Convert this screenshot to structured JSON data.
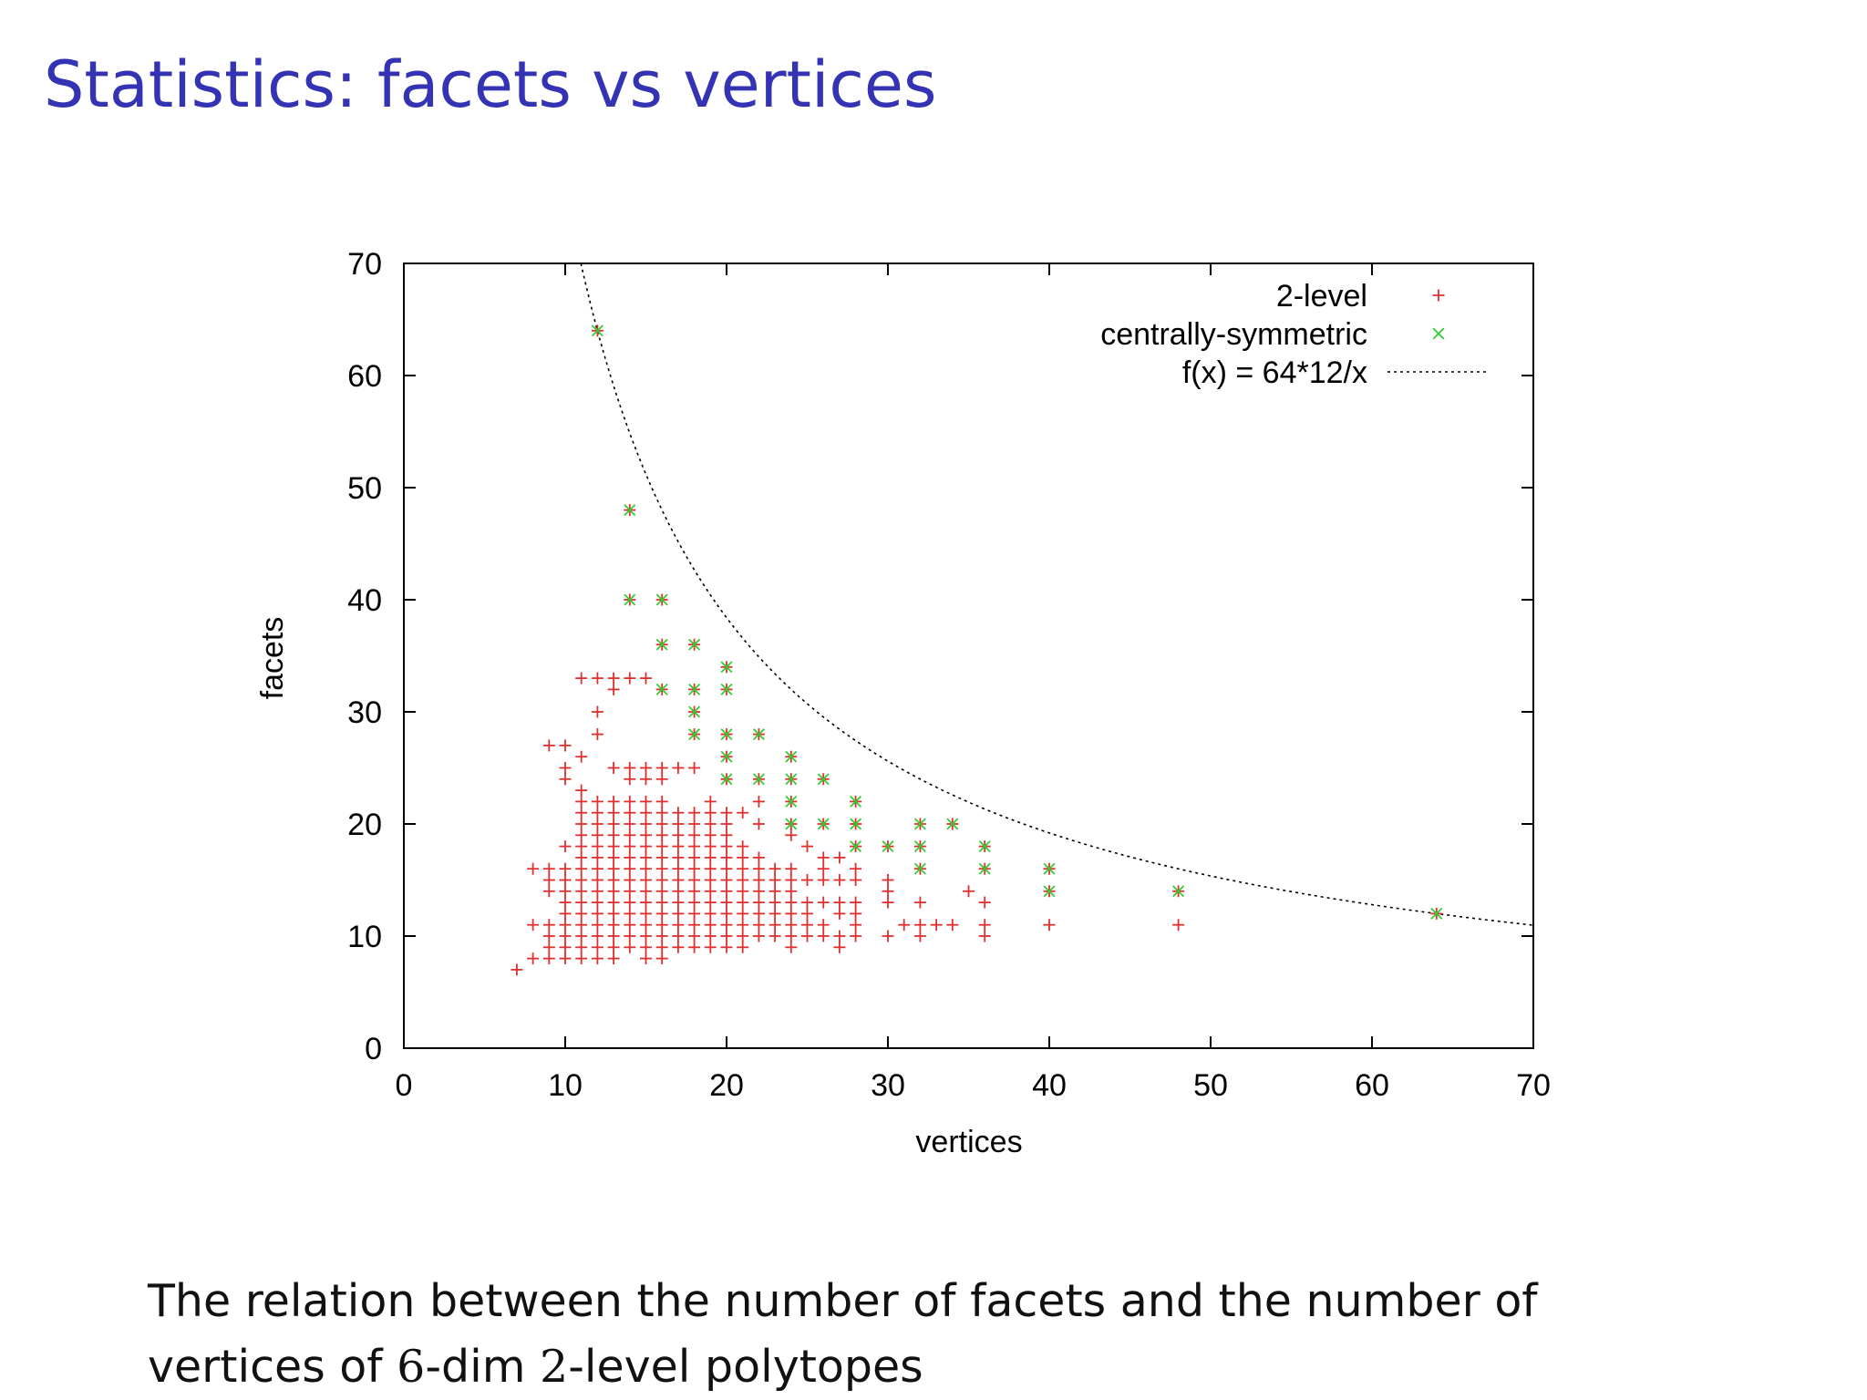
{
  "slide": {
    "title": "Statistics: facets vs vertices",
    "caption_line1": "The relation between the number of facets and the number of",
    "caption_line2_a": "vertices of ",
    "caption_line2_b": "6",
    "caption_line2_c": "-dim ",
    "caption_line2_d": "2",
    "caption_line2_e": "-level polytopes"
  },
  "colors": {
    "title": "#3333b3",
    "two_level": "#e03030",
    "centrally_symmetric": "#33cc33",
    "curve": "#000000"
  },
  "chart_data": {
    "type": "scatter",
    "xlabel": "vertices",
    "ylabel": "facets",
    "xlim": [
      0,
      70
    ],
    "ylim": [
      0,
      70
    ],
    "xticks": [
      0,
      10,
      20,
      30,
      40,
      50,
      60,
      70
    ],
    "yticks": [
      0,
      10,
      20,
      30,
      40,
      50,
      60,
      70
    ],
    "grid": false,
    "legend_position": "top-right",
    "series": [
      {
        "name": "2-level",
        "marker": "+",
        "points": [
          [
            7,
            7
          ],
          [
            8,
            8
          ],
          [
            8,
            11
          ],
          [
            8,
            16
          ],
          [
            9,
            8
          ],
          [
            9,
            9
          ],
          [
            9,
            10
          ],
          [
            9,
            11
          ],
          [
            9,
            14
          ],
          [
            9,
            15
          ],
          [
            9,
            16
          ],
          [
            9,
            27
          ],
          [
            10,
            8
          ],
          [
            10,
            9
          ],
          [
            10,
            10
          ],
          [
            10,
            11
          ],
          [
            10,
            12
          ],
          [
            10,
            13
          ],
          [
            10,
            14
          ],
          [
            10,
            15
          ],
          [
            10,
            16
          ],
          [
            10,
            18
          ],
          [
            10,
            24
          ],
          [
            10,
            25
          ],
          [
            10,
            27
          ],
          [
            11,
            8
          ],
          [
            11,
            9
          ],
          [
            11,
            10
          ],
          [
            11,
            11
          ],
          [
            11,
            12
          ],
          [
            11,
            13
          ],
          [
            11,
            14
          ],
          [
            11,
            15
          ],
          [
            11,
            16
          ],
          [
            11,
            17
          ],
          [
            11,
            18
          ],
          [
            11,
            19
          ],
          [
            11,
            20
          ],
          [
            11,
            21
          ],
          [
            11,
            22
          ],
          [
            11,
            23
          ],
          [
            11,
            26
          ],
          [
            11,
            33
          ],
          [
            12,
            8
          ],
          [
            12,
            9
          ],
          [
            12,
            10
          ],
          [
            12,
            11
          ],
          [
            12,
            12
          ],
          [
            12,
            13
          ],
          [
            12,
            14
          ],
          [
            12,
            15
          ],
          [
            12,
            16
          ],
          [
            12,
            17
          ],
          [
            12,
            18
          ],
          [
            12,
            19
          ],
          [
            12,
            20
          ],
          [
            12,
            21
          ],
          [
            12,
            22
          ],
          [
            12,
            28
          ],
          [
            12,
            30
          ],
          [
            12,
            33
          ],
          [
            13,
            8
          ],
          [
            13,
            9
          ],
          [
            13,
            10
          ],
          [
            13,
            11
          ],
          [
            13,
            12
          ],
          [
            13,
            13
          ],
          [
            13,
            14
          ],
          [
            13,
            15
          ],
          [
            13,
            16
          ],
          [
            13,
            17
          ],
          [
            13,
            18
          ],
          [
            13,
            19
          ],
          [
            13,
            20
          ],
          [
            13,
            21
          ],
          [
            13,
            22
          ],
          [
            13,
            25
          ],
          [
            13,
            32
          ],
          [
            13,
            33
          ],
          [
            14,
            9
          ],
          [
            14,
            10
          ],
          [
            14,
            11
          ],
          [
            14,
            12
          ],
          [
            14,
            13
          ],
          [
            14,
            14
          ],
          [
            14,
            15
          ],
          [
            14,
            16
          ],
          [
            14,
            17
          ],
          [
            14,
            18
          ],
          [
            14,
            19
          ],
          [
            14,
            20
          ],
          [
            14,
            21
          ],
          [
            14,
            22
          ],
          [
            14,
            24
          ],
          [
            14,
            25
          ],
          [
            14,
            33
          ],
          [
            15,
            8
          ],
          [
            15,
            9
          ],
          [
            15,
            10
          ],
          [
            15,
            11
          ],
          [
            15,
            12
          ],
          [
            15,
            13
          ],
          [
            15,
            14
          ],
          [
            15,
            15
          ],
          [
            15,
            16
          ],
          [
            15,
            17
          ],
          [
            15,
            18
          ],
          [
            15,
            19
          ],
          [
            15,
            20
          ],
          [
            15,
            21
          ],
          [
            15,
            22
          ],
          [
            15,
            24
          ],
          [
            15,
            25
          ],
          [
            15,
            33
          ],
          [
            16,
            8
          ],
          [
            16,
            9
          ],
          [
            16,
            10
          ],
          [
            16,
            11
          ],
          [
            16,
            12
          ],
          [
            16,
            13
          ],
          [
            16,
            14
          ],
          [
            16,
            15
          ],
          [
            16,
            16
          ],
          [
            16,
            17
          ],
          [
            16,
            18
          ],
          [
            16,
            19
          ],
          [
            16,
            20
          ],
          [
            16,
            21
          ],
          [
            16,
            22
          ],
          [
            16,
            24
          ],
          [
            16,
            25
          ],
          [
            17,
            9
          ],
          [
            17,
            10
          ],
          [
            17,
            11
          ],
          [
            17,
            12
          ],
          [
            17,
            13
          ],
          [
            17,
            14
          ],
          [
            17,
            15
          ],
          [
            17,
            16
          ],
          [
            17,
            17
          ],
          [
            17,
            18
          ],
          [
            17,
            19
          ],
          [
            17,
            20
          ],
          [
            17,
            21
          ],
          [
            17,
            25
          ],
          [
            18,
            9
          ],
          [
            18,
            10
          ],
          [
            18,
            11
          ],
          [
            18,
            12
          ],
          [
            18,
            13
          ],
          [
            18,
            14
          ],
          [
            18,
            15
          ],
          [
            18,
            16
          ],
          [
            18,
            17
          ],
          [
            18,
            18
          ],
          [
            18,
            19
          ],
          [
            18,
            20
          ],
          [
            18,
            21
          ],
          [
            18,
            25
          ],
          [
            19,
            9
          ],
          [
            19,
            10
          ],
          [
            19,
            11
          ],
          [
            19,
            12
          ],
          [
            19,
            13
          ],
          [
            19,
            14
          ],
          [
            19,
            15
          ],
          [
            19,
            16
          ],
          [
            19,
            17
          ],
          [
            19,
            18
          ],
          [
            19,
            19
          ],
          [
            19,
            20
          ],
          [
            19,
            21
          ],
          [
            19,
            22
          ],
          [
            20,
            9
          ],
          [
            20,
            10
          ],
          [
            20,
            11
          ],
          [
            20,
            12
          ],
          [
            20,
            13
          ],
          [
            20,
            14
          ],
          [
            20,
            15
          ],
          [
            20,
            16
          ],
          [
            20,
            17
          ],
          [
            20,
            18
          ],
          [
            20,
            19
          ],
          [
            20,
            20
          ],
          [
            20,
            21
          ],
          [
            21,
            9
          ],
          [
            21,
            10
          ],
          [
            21,
            11
          ],
          [
            21,
            12
          ],
          [
            21,
            13
          ],
          [
            21,
            14
          ],
          [
            21,
            15
          ],
          [
            21,
            16
          ],
          [
            21,
            17
          ],
          [
            21,
            18
          ],
          [
            21,
            21
          ],
          [
            22,
            10
          ],
          [
            22,
            11
          ],
          [
            22,
            12
          ],
          [
            22,
            13
          ],
          [
            22,
            14
          ],
          [
            22,
            15
          ],
          [
            22,
            16
          ],
          [
            22,
            17
          ],
          [
            22,
            20
          ],
          [
            22,
            22
          ],
          [
            23,
            10
          ],
          [
            23,
            11
          ],
          [
            23,
            12
          ],
          [
            23,
            13
          ],
          [
            23,
            14
          ],
          [
            23,
            15
          ],
          [
            23,
            16
          ],
          [
            24,
            9
          ],
          [
            24,
            10
          ],
          [
            24,
            11
          ],
          [
            24,
            12
          ],
          [
            24,
            13
          ],
          [
            24,
            14
          ],
          [
            24,
            15
          ],
          [
            24,
            16
          ],
          [
            24,
            19
          ],
          [
            25,
            10
          ],
          [
            25,
            11
          ],
          [
            25,
            12
          ],
          [
            25,
            13
          ],
          [
            25,
            15
          ],
          [
            25,
            18
          ],
          [
            26,
            10
          ],
          [
            26,
            11
          ],
          [
            26,
            13
          ],
          [
            26,
            15
          ],
          [
            26,
            16
          ],
          [
            26,
            17
          ],
          [
            27,
            9
          ],
          [
            27,
            10
          ],
          [
            27,
            12
          ],
          [
            27,
            13
          ],
          [
            27,
            15
          ],
          [
            27,
            17
          ],
          [
            28,
            10
          ],
          [
            28,
            11
          ],
          [
            28,
            12
          ],
          [
            28,
            13
          ],
          [
            28,
            15
          ],
          [
            28,
            16
          ],
          [
            30,
            10
          ],
          [
            30,
            13
          ],
          [
            30,
            14
          ],
          [
            30,
            15
          ],
          [
            31,
            11
          ],
          [
            32,
            10
          ],
          [
            32,
            11
          ],
          [
            32,
            13
          ],
          [
            33,
            11
          ],
          [
            34,
            11
          ],
          [
            35,
            14
          ],
          [
            36,
            10
          ],
          [
            36,
            11
          ],
          [
            36,
            13
          ],
          [
            40,
            11
          ],
          [
            48,
            11
          ]
        ]
      },
      {
        "name": "centrally-symmetric",
        "marker": "x",
        "points": [
          [
            12,
            64
          ],
          [
            14,
            40
          ],
          [
            14,
            48
          ],
          [
            16,
            32
          ],
          [
            16,
            36
          ],
          [
            16,
            40
          ],
          [
            18,
            28
          ],
          [
            18,
            30
          ],
          [
            18,
            32
          ],
          [
            18,
            36
          ],
          [
            20,
            24
          ],
          [
            20,
            26
          ],
          [
            20,
            28
          ],
          [
            20,
            32
          ],
          [
            20,
            34
          ],
          [
            22,
            24
          ],
          [
            22,
            28
          ],
          [
            24,
            20
          ],
          [
            24,
            22
          ],
          [
            24,
            24
          ],
          [
            24,
            26
          ],
          [
            26,
            20
          ],
          [
            26,
            24
          ],
          [
            28,
            18
          ],
          [
            28,
            20
          ],
          [
            28,
            22
          ],
          [
            30,
            18
          ],
          [
            32,
            16
          ],
          [
            32,
            18
          ],
          [
            32,
            20
          ],
          [
            34,
            20
          ],
          [
            36,
            16
          ],
          [
            36,
            18
          ],
          [
            40,
            14
          ],
          [
            40,
            16
          ],
          [
            48,
            14
          ],
          [
            64,
            12
          ]
        ]
      },
      {
        "name": "f(x) = 64*12/x",
        "type": "function",
        "style": "dotted",
        "numerator": 768
      }
    ]
  }
}
